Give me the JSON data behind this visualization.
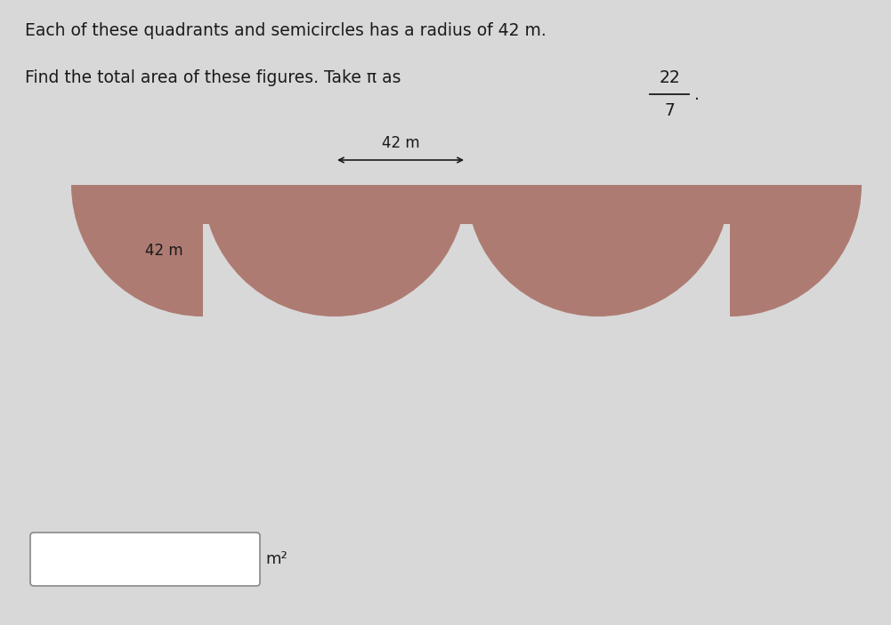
{
  "title_line1": "Each of these quadrants and semicircles has a radius of 42 m.",
  "title_line2": "Find the total area of these figures. Take π as",
  "pi_numerator": "22",
  "pi_denominator": "7",
  "radius_label": "42 m",
  "side_label": "42 m",
  "answer_label": "m²",
  "shape_color": "#ae7b72",
  "background_color": "#d8d8d8",
  "fig_width": 10.01,
  "fig_height": 7.03,
  "dpi": 100
}
